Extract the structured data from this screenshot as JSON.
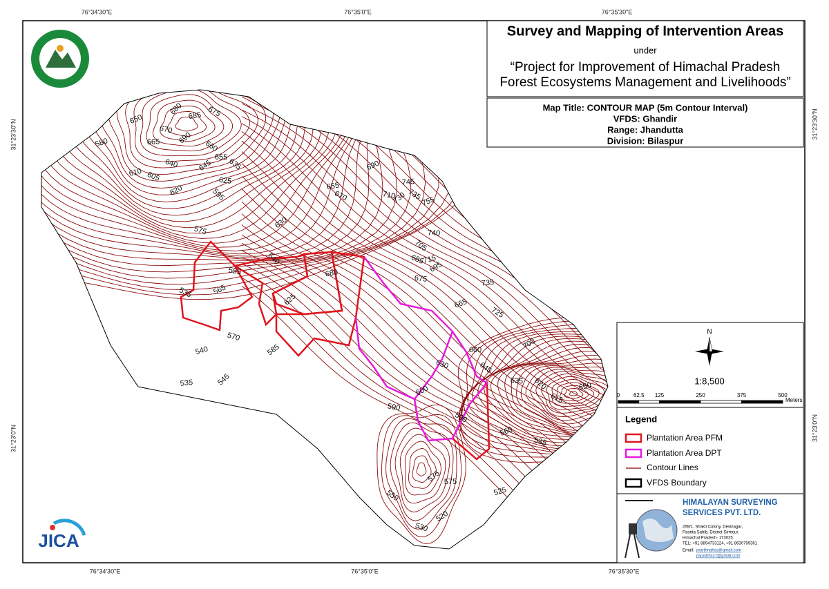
{
  "header": {
    "title": "Survey and Mapping of Intervention Areas",
    "under": "under",
    "project": [
      "“Project for Improvement of Himachal Pradesh",
      "Forest Ecosystems Management and Livelihoods”"
    ]
  },
  "map_info": {
    "map_title": "Map Title: CONTOUR MAP (5m Contour Interval)",
    "vfds": "VFDS: Ghandir",
    "range": "Range: Jhandutta",
    "division": "Division: Bilaspur"
  },
  "graticule": {
    "lon": [
      "76°34'30\"E",
      "76°35'0\"E",
      "76°35'30\"E"
    ],
    "lat": [
      "31°23'30\"N",
      "31°23'0\"N"
    ]
  },
  "scale": {
    "north": "N",
    "ratio": "1:8,500",
    "ticks": [
      0,
      62.5,
      125,
      250,
      375,
      500
    ],
    "unit": "Meters"
  },
  "legend": {
    "title": "Legend",
    "items": [
      "Plantation Area PFM",
      "Plantation Area DPT",
      "Contour Lines",
      "VFDS Boundary"
    ]
  },
  "company": {
    "name": [
      "HIMALAYAN SURVEYING",
      "SERVICES PVT. LTD."
    ],
    "address": [
      "259/1, Shakti Colony, Devinagar,",
      "Paonta Sahib, District Sirmour,",
      "Himachal Pradesh- 173025",
      "TEL: +91 8894733124, +91 8630799361"
    ],
    "email_label": "Email:",
    "emails": [
      "prarthnahss@gmail.com",
      "piyushhss7@gmail.com"
    ]
  },
  "logos": {
    "jica": "JICA"
  },
  "contour_labels": [
    680,
    685,
    675,
    650,
    670,
    690,
    665,
    660,
    580,
    640,
    645,
    655,
    635,
    610,
    605,
    620,
    625,
    595,
    655,
    670,
    690,
    710,
    730,
    745,
    735,
    755,
    575,
    630,
    740,
    705,
    715,
    685,
    695,
    675,
    640,
    680,
    535,
    565,
    555,
    625,
    735,
    725,
    665,
    570,
    585,
    660,
    645,
    540,
    630,
    700,
    635,
    620,
    650,
    615,
    600,
    590,
    545,
    535,
    590,
    560,
    535,
    575,
    575,
    550,
    525,
    530,
    520
  ]
}
